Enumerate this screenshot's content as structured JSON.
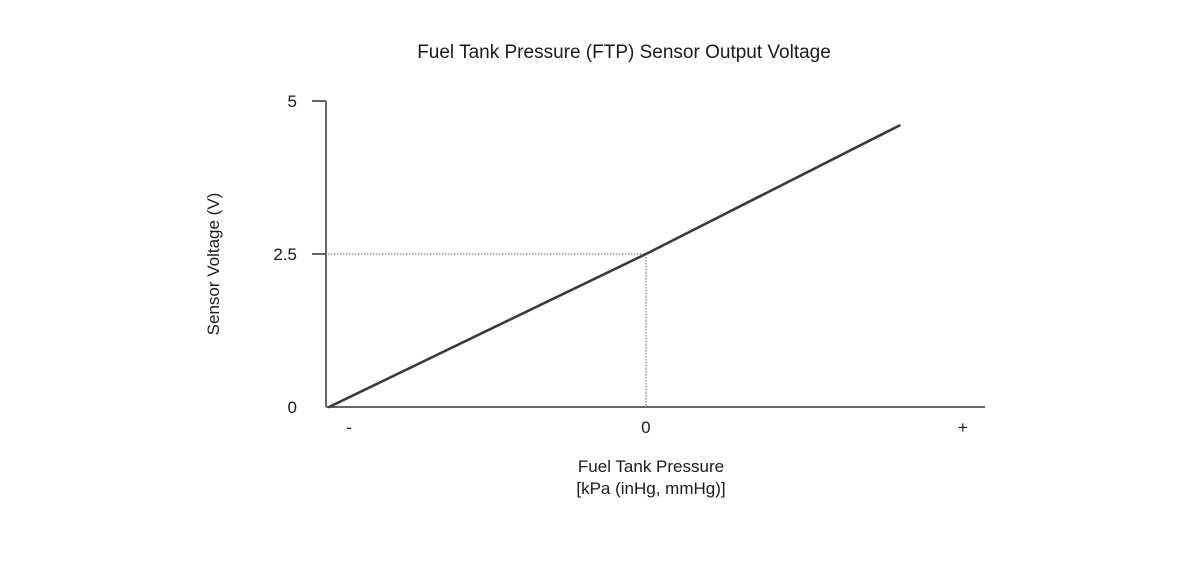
{
  "chart_data": {
    "type": "line",
    "title": "Fuel Tank Pressure (FTP) Sensor Output Voltage",
    "xlabel": "Fuel Tank Pressure",
    "xlabel_units": "[kPa (inHg, mmHg)]",
    "ylabel": "Sensor Voltage (V)",
    "x_ticks": [
      {
        "label": "-",
        "value": -1
      },
      {
        "label": "0",
        "value": 0
      },
      {
        "label": "+",
        "value": 1
      }
    ],
    "y_ticks": [
      {
        "label": "0",
        "value": 0
      },
      {
        "label": "2.5",
        "value": 2.5
      },
      {
        "label": "5",
        "value": 5
      }
    ],
    "xlim": [
      -1,
      1.07
    ],
    "ylim": [
      0,
      5
    ],
    "series": [
      {
        "x": [
          -1,
          0,
          0.8
        ],
        "y": [
          0,
          2.5,
          4.6
        ]
      }
    ],
    "reference_lines": [
      {
        "x": 0,
        "y": 2.5,
        "style": "dotted"
      }
    ],
    "grid": false,
    "colors": {
      "line": "#3a3a3a",
      "axis": "#666666",
      "reference": "#999999",
      "text": "#1a1a1a"
    }
  }
}
